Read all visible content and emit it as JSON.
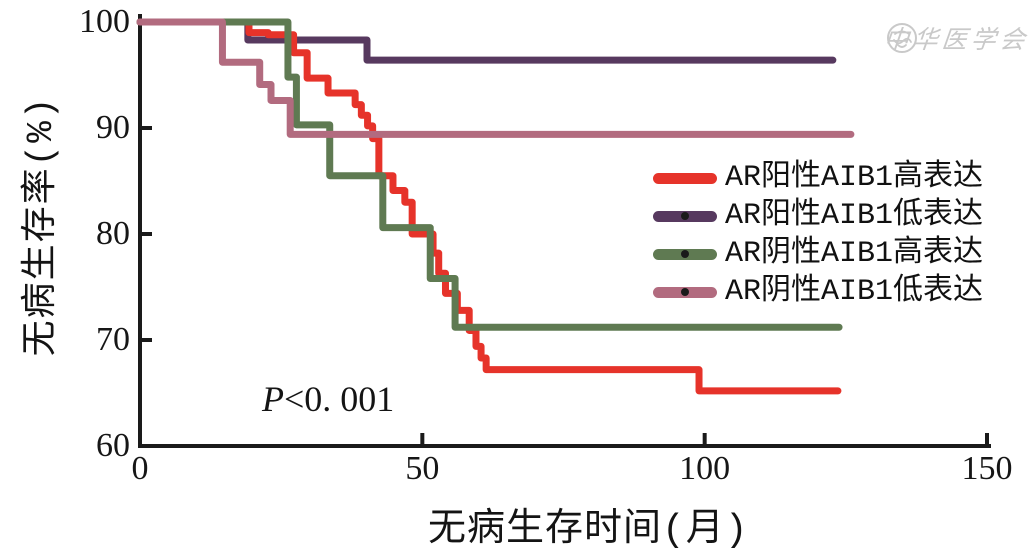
{
  "figure": {
    "watermark_text": "中华医学会",
    "annotation": {
      "symbol": "P",
      "rest": "<0. 001"
    }
  },
  "chart_data": {
    "type": "line",
    "subtype": "kaplan-meier-step",
    "title": "",
    "xlabel": "无病生存时间(月)",
    "ylabel": "无病生存率(%)",
    "xlim": [
      0,
      150
    ],
    "ylim": [
      60,
      100
    ],
    "x_ticks": [
      0,
      50,
      100,
      150
    ],
    "y_ticks": [
      100,
      90,
      80,
      70,
      60
    ],
    "grid": false,
    "legend_position": "right-middle",
    "annotation": "P<0. 001",
    "axis_color": "#1a1a1a",
    "draw_order": [
      1,
      0,
      2,
      3
    ],
    "series": [
      {
        "name": "AR阳性AIB1高表达",
        "color": "#e6332a",
        "end": 123.6,
        "steps": [
          [
            0,
            100
          ],
          [
            19.3,
            99.0
          ],
          [
            22.7,
            98.8
          ],
          [
            27.2,
            97.1
          ],
          [
            29.6,
            94.7
          ],
          [
            33.3,
            93.3
          ],
          [
            38.1,
            92.2
          ],
          [
            39.2,
            91.2
          ],
          [
            40.3,
            90.2
          ],
          [
            41.2,
            89.0
          ],
          [
            42.3,
            85.5
          ],
          [
            44.8,
            84.1
          ],
          [
            46.9,
            83.0
          ],
          [
            48.2,
            80.0
          ],
          [
            51.9,
            78.2
          ],
          [
            52.9,
            76.3
          ],
          [
            54.1,
            74.4
          ],
          [
            56.2,
            72.8
          ],
          [
            58.3,
            70.9
          ],
          [
            59.5,
            69.4
          ],
          [
            60.4,
            68.3
          ],
          [
            61.3,
            67.2
          ],
          [
            99.0,
            65.2
          ]
        ]
      },
      {
        "name": "AR阳性AIB1低表达",
        "color": "#57395f",
        "end": 122.7,
        "steps": [
          [
            0,
            100
          ],
          [
            19.1,
            98.3
          ],
          [
            40.2,
            96.4
          ]
        ]
      },
      {
        "name": "AR阴性AIB1高表达",
        "color": "#5f7a52",
        "end": 123.8,
        "steps": [
          [
            0,
            100
          ],
          [
            26.2,
            94.8
          ],
          [
            27.7,
            90.3
          ],
          [
            33.6,
            85.5
          ],
          [
            43.0,
            80.6
          ],
          [
            51.4,
            75.8
          ],
          [
            55.8,
            71.2
          ]
        ]
      },
      {
        "name": "AR阴性AIB1低表达",
        "color": "#b26b7f",
        "end": 125.9,
        "steps": [
          [
            0,
            100
          ],
          [
            14.6,
            96.2
          ],
          [
            21.2,
            94.1
          ],
          [
            23.2,
            92.6
          ],
          [
            26.6,
            89.4
          ]
        ]
      }
    ]
  },
  "legend": {
    "items": [
      {
        "label": "AR阳性AIB1高表达",
        "color": "#e6332a",
        "dot": false
      },
      {
        "label": "AR阳性AIB1低表达",
        "color": "#57395f",
        "dot": true
      },
      {
        "label": "AR阴性AIB1高表达",
        "color": "#5f7a52",
        "dot": true
      },
      {
        "label": "AR阴性AIB1低表达",
        "color": "#b26b7f",
        "dot": true
      }
    ]
  }
}
